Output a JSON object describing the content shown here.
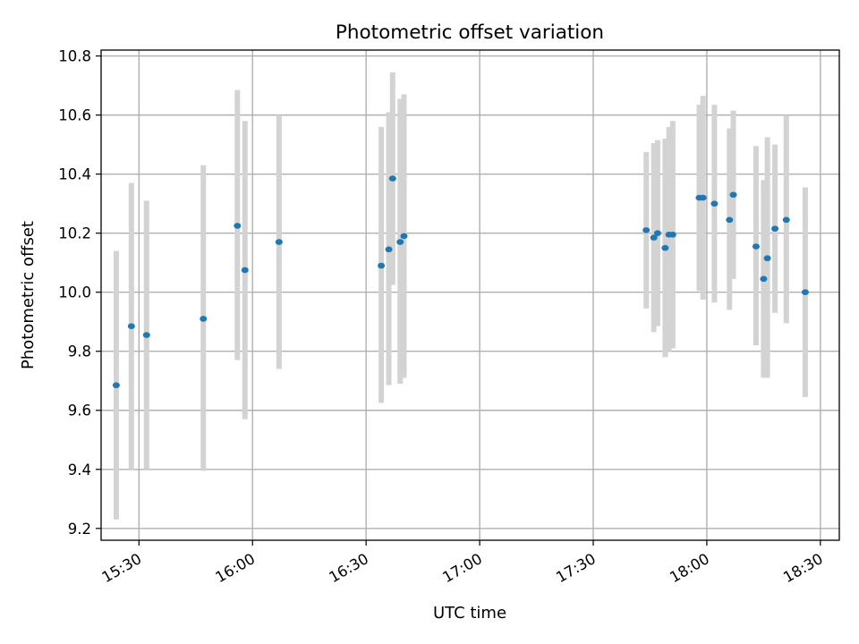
{
  "chart_data": {
    "type": "scatter",
    "title": "Photometric offset variation",
    "xlabel": "UTC time",
    "ylabel": "Photometric offset",
    "x_is_time": true,
    "xlim": [
      "15:20",
      "18:35"
    ],
    "ylim": [
      9.16,
      10.82
    ],
    "xticks": [
      "15:30",
      "16:00",
      "16:30",
      "17:00",
      "17:30",
      "18:00",
      "18:30"
    ],
    "yticks": [
      9.2,
      9.4,
      9.6,
      9.8,
      10.0,
      10.2,
      10.4,
      10.6,
      10.8
    ],
    "grid": true,
    "legend": "none",
    "colors": {
      "points": "#1f77b4",
      "error_bars": "#d3d3d3"
    },
    "points": [
      {
        "x": "15:24",
        "y": 9.685,
        "ylow": 9.23,
        "yhigh": 10.14
      },
      {
        "x": "15:28",
        "y": 9.885,
        "ylow": 9.4,
        "yhigh": 10.37
      },
      {
        "x": "15:32",
        "y": 9.855,
        "ylow": 9.4,
        "yhigh": 10.31
      },
      {
        "x": "15:47",
        "y": 9.91,
        "ylow": 9.395,
        "yhigh": 10.43
      },
      {
        "x": "15:56",
        "y": 10.225,
        "ylow": 9.77,
        "yhigh": 10.685
      },
      {
        "x": "15:58",
        "y": 10.075,
        "ylow": 9.57,
        "yhigh": 10.58
      },
      {
        "x": "16:07",
        "y": 10.17,
        "ylow": 9.74,
        "yhigh": 10.6
      },
      {
        "x": "16:34",
        "y": 10.09,
        "ylow": 9.625,
        "yhigh": 10.56
      },
      {
        "x": "16:36",
        "y": 10.145,
        "ylow": 9.685,
        "yhigh": 10.61
      },
      {
        "x": "16:37",
        "y": 10.385,
        "ylow": 10.025,
        "yhigh": 10.745
      },
      {
        "x": "16:39",
        "y": 10.17,
        "ylow": 9.69,
        "yhigh": 10.655
      },
      {
        "x": "16:40",
        "y": 10.19,
        "ylow": 9.71,
        "yhigh": 10.67
      },
      {
        "x": "17:44",
        "y": 10.21,
        "ylow": 9.945,
        "yhigh": 10.475
      },
      {
        "x": "17:46",
        "y": 10.185,
        "ylow": 9.865,
        "yhigh": 10.505
      },
      {
        "x": "17:47",
        "y": 10.2,
        "ylow": 9.885,
        "yhigh": 10.515
      },
      {
        "x": "17:49",
        "y": 10.15,
        "ylow": 9.78,
        "yhigh": 10.52
      },
      {
        "x": "17:50",
        "y": 10.195,
        "ylow": 9.8,
        "yhigh": 10.56
      },
      {
        "x": "17:51",
        "y": 10.195,
        "ylow": 9.81,
        "yhigh": 10.58
      },
      {
        "x": "17:58",
        "y": 10.32,
        "ylow": 10.005,
        "yhigh": 10.635
      },
      {
        "x": "17:59",
        "y": 10.32,
        "ylow": 9.975,
        "yhigh": 10.665
      },
      {
        "x": "18:02",
        "y": 10.3,
        "ylow": 9.965,
        "yhigh": 10.635
      },
      {
        "x": "18:06",
        "y": 10.245,
        "ylow": 9.94,
        "yhigh": 10.555
      },
      {
        "x": "18:07",
        "y": 10.33,
        "ylow": 10.045,
        "yhigh": 10.615
      },
      {
        "x": "18:13",
        "y": 10.155,
        "ylow": 9.82,
        "yhigh": 10.495
      },
      {
        "x": "18:15",
        "y": 10.045,
        "ylow": 9.71,
        "yhigh": 10.38
      },
      {
        "x": "18:16",
        "y": 10.115,
        "ylow": 9.71,
        "yhigh": 10.525
      },
      {
        "x": "18:18",
        "y": 10.215,
        "ylow": 9.93,
        "yhigh": 10.5
      },
      {
        "x": "18:21",
        "y": 10.245,
        "ylow": 9.895,
        "yhigh": 10.6
      },
      {
        "x": "18:26",
        "y": 10.0,
        "ylow": 9.645,
        "yhigh": 10.355
      }
    ]
  }
}
